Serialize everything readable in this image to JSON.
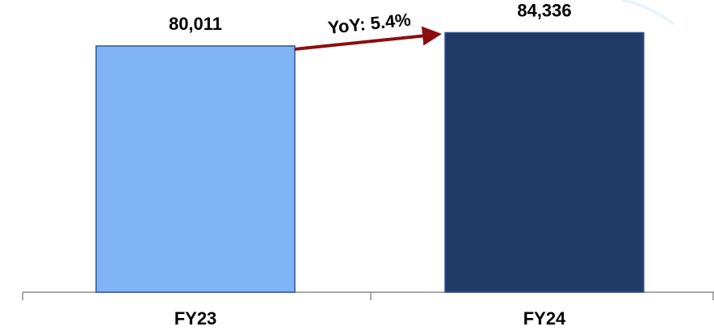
{
  "chart_data": {
    "type": "bar",
    "categories": [
      "FY23",
      "FY24"
    ],
    "values": [
      80011,
      84336
    ],
    "value_labels": [
      "80,011",
      "84,336"
    ],
    "bar_colors": [
      "#7FB3F5",
      "#213A66"
    ],
    "bar_edge_color": "#2F5597",
    "title": "",
    "xlabel": "",
    "ylabel": "",
    "ylim": [
      0,
      87600
    ],
    "grid": false,
    "annotation": {
      "text": "YoY: 5.4%",
      "type": "arrow",
      "color": "#8B0E0E",
      "from": "FY23",
      "to": "FY24"
    }
  }
}
